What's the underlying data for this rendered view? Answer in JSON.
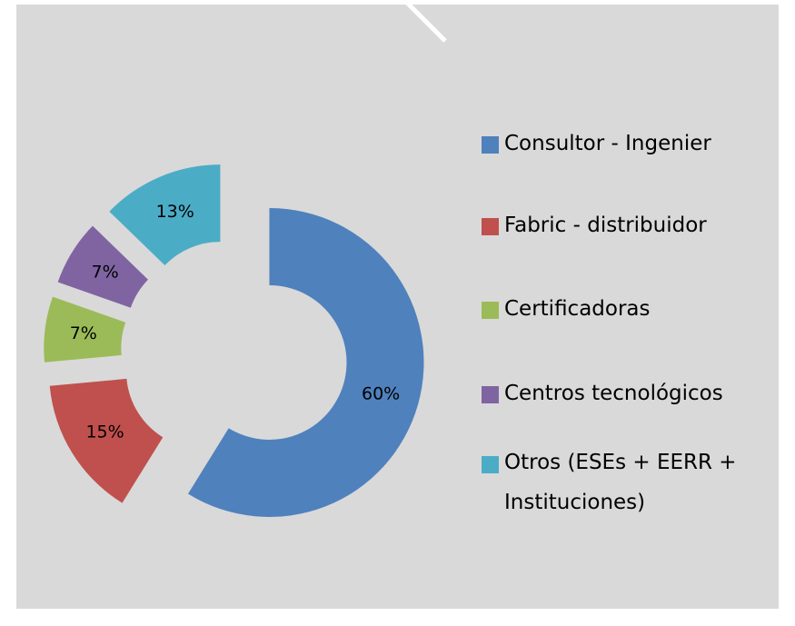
{
  "chart_data": {
    "type": "donut",
    "categories": [
      "Consultor - Ingenier",
      "Fabric - distribuidor",
      "Certificadoras",
      "Centros tecnológicos",
      "Otros (ESEs + EERR + Instituciones)"
    ],
    "values": [
      60,
      15,
      7,
      7,
      13
    ],
    "value_labels": [
      "60%",
      "15%",
      "7%",
      "7%",
      "13%"
    ],
    "colors": [
      "#4f81bd",
      "#c0504d",
      "#9bbb59",
      "#8064a2",
      "#4bacc6"
    ],
    "legend": "right"
  }
}
